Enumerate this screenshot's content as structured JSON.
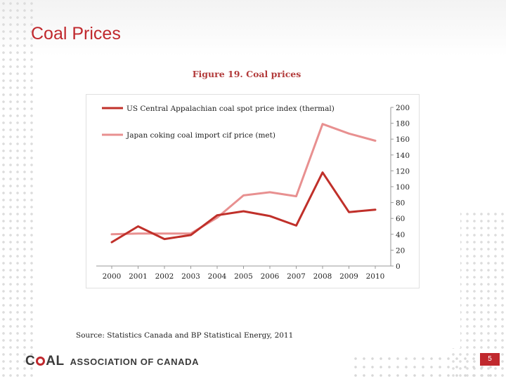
{
  "slide": {
    "title": "Coal Prices",
    "page_number": "5",
    "accent_color": "#c0282d"
  },
  "figure": {
    "title": "Figure 19. Coal prices",
    "source": "Source: Statistics Canada and BP Statistical Energy, 2011"
  },
  "footer": {
    "logo_mark_c": "C",
    "logo_mark_al": "AL",
    "logo_text": "Association of Canada"
  },
  "chart_data": {
    "type": "line",
    "title": "",
    "xlabel": "",
    "ylabel": "",
    "x": [
      "2000",
      "2001",
      "2002",
      "2003",
      "2004",
      "2005",
      "2006",
      "2007",
      "2008",
      "2009",
      "2010"
    ],
    "ylim": [
      0,
      200
    ],
    "yticks": [
      0,
      20,
      40,
      60,
      80,
      100,
      120,
      140,
      160,
      180,
      200
    ],
    "y_axis_side": "right",
    "grid": false,
    "legend_position": "top-left",
    "series": [
      {
        "name": "US Central Appalachian coal spot price index (thermal)",
        "color": "#c0302a",
        "values": [
          30,
          50,
          34,
          39,
          64,
          69,
          63,
          51,
          118,
          68,
          71
        ]
      },
      {
        "name": "Japan coking coal import cif price (met)",
        "color": "#e89090",
        "values": [
          40,
          41,
          41,
          41,
          61,
          89,
          93,
          88,
          179,
          167,
          158
        ]
      }
    ]
  }
}
